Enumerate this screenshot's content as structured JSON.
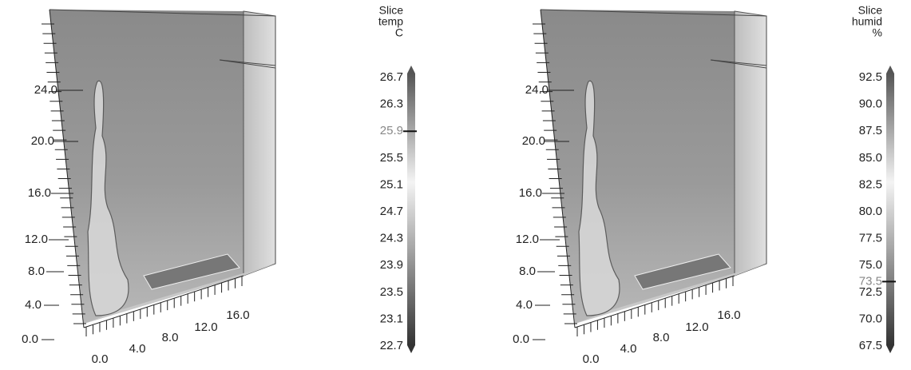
{
  "panels": [
    {
      "legend": {
        "title": [
          "Slice",
          "temp",
          "C"
        ],
        "labels": [
          "26.7",
          "26.3",
          "25.5",
          "25.1",
          "24.7",
          "24.3",
          "23.9",
          "23.5",
          "23.1",
          "22.7"
        ],
        "marker": "25.9"
      },
      "z_axis": [
        "0.0",
        "4.0",
        "8.0",
        "12.0",
        "16.0",
        "20.0",
        "24.0"
      ],
      "x_axis": [
        "0.0",
        "4.0",
        "8.0",
        "12.0",
        "16.0"
      ]
    },
    {
      "legend": {
        "title": [
          "Slice",
          "humid",
          "%"
        ],
        "labels": [
          "92.5",
          "90.0",
          "87.5",
          "85.0",
          "82.5",
          "80.0",
          "77.5",
          "75.0",
          "72.5",
          "70.0",
          "67.5"
        ],
        "marker": "73.5"
      },
      "z_axis": [
        "0.0",
        "4.0",
        "8.0",
        "12.0",
        "16.0",
        "20.0",
        "24.0"
      ],
      "x_axis": [
        "0.0",
        "4.0",
        "8.0",
        "12.0",
        "16.0"
      ]
    }
  ]
}
